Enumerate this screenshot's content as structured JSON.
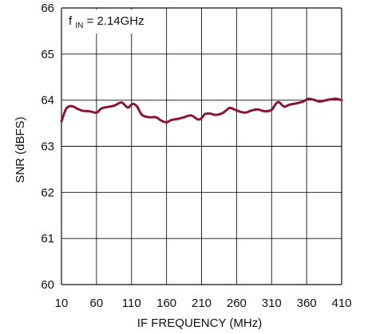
{
  "chart_data": {
    "type": "line",
    "title": "",
    "xlabel": "IF FREQUENCY (MHz)",
    "ylabel": "SNR (dBFS)",
    "xlim": [
      10,
      410
    ],
    "ylim": [
      60,
      66
    ],
    "x_ticks": [
      10,
      60,
      110,
      160,
      210,
      260,
      310,
      360,
      410
    ],
    "y_ticks": [
      60,
      61,
      62,
      63,
      64,
      65,
      66
    ],
    "x_tick_labels": [
      "10",
      "60",
      "110",
      "160",
      "210",
      "260",
      "310",
      "360",
      "410"
    ],
    "y_tick_labels": [
      "60",
      "61",
      "62",
      "63",
      "64",
      "65",
      "66"
    ],
    "grid": true,
    "annotation": {
      "main": "f",
      "subscript": "IN",
      "suffix": " = 2.14GHz"
    },
    "series": [
      {
        "color": "#8b1538",
        "x": [
          10,
          17,
          25,
          32,
          40,
          50,
          60,
          67,
          75,
          85,
          95,
          100,
          105,
          112,
          118,
          125,
          135,
          145,
          152,
          160,
          167,
          175,
          185,
          195,
          205,
          210,
          215,
          222,
          230,
          240,
          250,
          258,
          265,
          273,
          280,
          290,
          300,
          310,
          315,
          320,
          328,
          335,
          345,
          355,
          362,
          370,
          378,
          385,
          395,
          402,
          410
        ],
        "y": [
          63.54,
          63.82,
          63.87,
          63.82,
          63.77,
          63.76,
          63.73,
          63.82,
          63.85,
          63.88,
          63.95,
          63.9,
          63.84,
          63.92,
          63.86,
          63.68,
          63.63,
          63.63,
          63.56,
          63.52,
          63.57,
          63.59,
          63.63,
          63.67,
          63.58,
          63.61,
          63.7,
          63.71,
          63.68,
          63.72,
          63.83,
          63.79,
          63.75,
          63.73,
          63.77,
          63.8,
          63.76,
          63.79,
          63.9,
          63.96,
          63.86,
          63.9,
          63.93,
          63.97,
          64.03,
          64.01,
          63.97,
          63.99,
          64.02,
          64.03,
          64.0
        ]
      }
    ]
  },
  "colors": {
    "line": "#8b1538",
    "grid": "#111111",
    "text": "#111111",
    "background": "#ffffff"
  }
}
